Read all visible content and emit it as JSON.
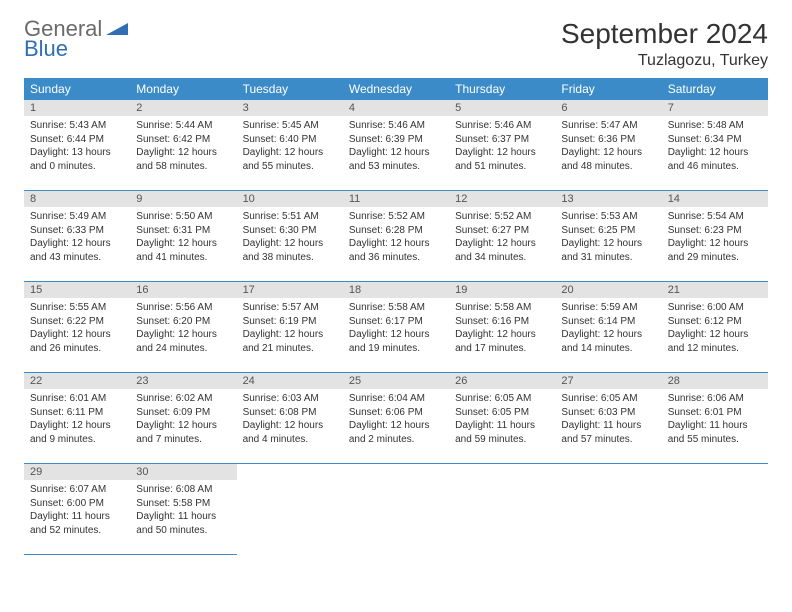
{
  "brand": {
    "general": "General",
    "blue": "Blue",
    "accent": "#2f6fb3"
  },
  "title": "September 2024",
  "location": "Tuzlagozu, Turkey",
  "colors": {
    "header_bg": "#3b8bc9",
    "header_fg": "#ffffff",
    "daynum_bg": "#e3e3e3",
    "row_border": "#3b8bc9"
  },
  "weekdays": [
    "Sunday",
    "Monday",
    "Tuesday",
    "Wednesday",
    "Thursday",
    "Friday",
    "Saturday"
  ],
  "weeks": [
    [
      {
        "n": "1",
        "sr": "Sunrise: 5:43 AM",
        "ss": "Sunset: 6:44 PM",
        "dl": "Daylight: 13 hours and 0 minutes."
      },
      {
        "n": "2",
        "sr": "Sunrise: 5:44 AM",
        "ss": "Sunset: 6:42 PM",
        "dl": "Daylight: 12 hours and 58 minutes."
      },
      {
        "n": "3",
        "sr": "Sunrise: 5:45 AM",
        "ss": "Sunset: 6:40 PM",
        "dl": "Daylight: 12 hours and 55 minutes."
      },
      {
        "n": "4",
        "sr": "Sunrise: 5:46 AM",
        "ss": "Sunset: 6:39 PM",
        "dl": "Daylight: 12 hours and 53 minutes."
      },
      {
        "n": "5",
        "sr": "Sunrise: 5:46 AM",
        "ss": "Sunset: 6:37 PM",
        "dl": "Daylight: 12 hours and 51 minutes."
      },
      {
        "n": "6",
        "sr": "Sunrise: 5:47 AM",
        "ss": "Sunset: 6:36 PM",
        "dl": "Daylight: 12 hours and 48 minutes."
      },
      {
        "n": "7",
        "sr": "Sunrise: 5:48 AM",
        "ss": "Sunset: 6:34 PM",
        "dl": "Daylight: 12 hours and 46 minutes."
      }
    ],
    [
      {
        "n": "8",
        "sr": "Sunrise: 5:49 AM",
        "ss": "Sunset: 6:33 PM",
        "dl": "Daylight: 12 hours and 43 minutes."
      },
      {
        "n": "9",
        "sr": "Sunrise: 5:50 AM",
        "ss": "Sunset: 6:31 PM",
        "dl": "Daylight: 12 hours and 41 minutes."
      },
      {
        "n": "10",
        "sr": "Sunrise: 5:51 AM",
        "ss": "Sunset: 6:30 PM",
        "dl": "Daylight: 12 hours and 38 minutes."
      },
      {
        "n": "11",
        "sr": "Sunrise: 5:52 AM",
        "ss": "Sunset: 6:28 PM",
        "dl": "Daylight: 12 hours and 36 minutes."
      },
      {
        "n": "12",
        "sr": "Sunrise: 5:52 AM",
        "ss": "Sunset: 6:27 PM",
        "dl": "Daylight: 12 hours and 34 minutes."
      },
      {
        "n": "13",
        "sr": "Sunrise: 5:53 AM",
        "ss": "Sunset: 6:25 PM",
        "dl": "Daylight: 12 hours and 31 minutes."
      },
      {
        "n": "14",
        "sr": "Sunrise: 5:54 AM",
        "ss": "Sunset: 6:23 PM",
        "dl": "Daylight: 12 hours and 29 minutes."
      }
    ],
    [
      {
        "n": "15",
        "sr": "Sunrise: 5:55 AM",
        "ss": "Sunset: 6:22 PM",
        "dl": "Daylight: 12 hours and 26 minutes."
      },
      {
        "n": "16",
        "sr": "Sunrise: 5:56 AM",
        "ss": "Sunset: 6:20 PM",
        "dl": "Daylight: 12 hours and 24 minutes."
      },
      {
        "n": "17",
        "sr": "Sunrise: 5:57 AM",
        "ss": "Sunset: 6:19 PM",
        "dl": "Daylight: 12 hours and 21 minutes."
      },
      {
        "n": "18",
        "sr": "Sunrise: 5:58 AM",
        "ss": "Sunset: 6:17 PM",
        "dl": "Daylight: 12 hours and 19 minutes."
      },
      {
        "n": "19",
        "sr": "Sunrise: 5:58 AM",
        "ss": "Sunset: 6:16 PM",
        "dl": "Daylight: 12 hours and 17 minutes."
      },
      {
        "n": "20",
        "sr": "Sunrise: 5:59 AM",
        "ss": "Sunset: 6:14 PM",
        "dl": "Daylight: 12 hours and 14 minutes."
      },
      {
        "n": "21",
        "sr": "Sunrise: 6:00 AM",
        "ss": "Sunset: 6:12 PM",
        "dl": "Daylight: 12 hours and 12 minutes."
      }
    ],
    [
      {
        "n": "22",
        "sr": "Sunrise: 6:01 AM",
        "ss": "Sunset: 6:11 PM",
        "dl": "Daylight: 12 hours and 9 minutes."
      },
      {
        "n": "23",
        "sr": "Sunrise: 6:02 AM",
        "ss": "Sunset: 6:09 PM",
        "dl": "Daylight: 12 hours and 7 minutes."
      },
      {
        "n": "24",
        "sr": "Sunrise: 6:03 AM",
        "ss": "Sunset: 6:08 PM",
        "dl": "Daylight: 12 hours and 4 minutes."
      },
      {
        "n": "25",
        "sr": "Sunrise: 6:04 AM",
        "ss": "Sunset: 6:06 PM",
        "dl": "Daylight: 12 hours and 2 minutes."
      },
      {
        "n": "26",
        "sr": "Sunrise: 6:05 AM",
        "ss": "Sunset: 6:05 PM",
        "dl": "Daylight: 11 hours and 59 minutes."
      },
      {
        "n": "27",
        "sr": "Sunrise: 6:05 AM",
        "ss": "Sunset: 6:03 PM",
        "dl": "Daylight: 11 hours and 57 minutes."
      },
      {
        "n": "28",
        "sr": "Sunrise: 6:06 AM",
        "ss": "Sunset: 6:01 PM",
        "dl": "Daylight: 11 hours and 55 minutes."
      }
    ],
    [
      {
        "n": "29",
        "sr": "Sunrise: 6:07 AM",
        "ss": "Sunset: 6:00 PM",
        "dl": "Daylight: 11 hours and 52 minutes."
      },
      {
        "n": "30",
        "sr": "Sunrise: 6:08 AM",
        "ss": "Sunset: 5:58 PM",
        "dl": "Daylight: 11 hours and 50 minutes."
      },
      null,
      null,
      null,
      null,
      null
    ]
  ]
}
